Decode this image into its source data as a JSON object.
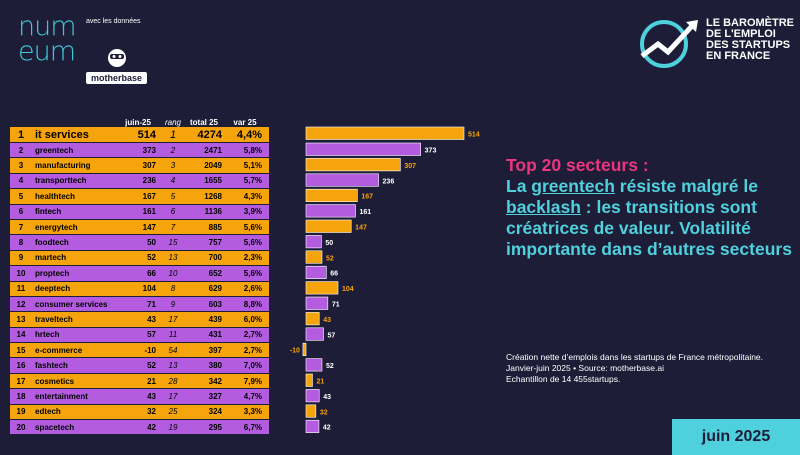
{
  "brand": {
    "logo_line1": "num",
    "logo_line2": "eum",
    "with_data": "avec les données",
    "motherbase": "motherbase"
  },
  "barometer": {
    "line1": "LE BAROMÈTRE",
    "line2": "DE L'EMPLOI",
    "line3": "DES STARTUPS",
    "line4": "EN FRANCE"
  },
  "headline": {
    "part1": "Top 20 secteurs :",
    "part2a": "La ",
    "part2_u1": "greentech",
    "part2b": " résiste malgré le ",
    "part2_u2": "backlash",
    "part2c": " : les transitions sont créatrices de valeur. Volatilité importante dans d’autres secteurs"
  },
  "note": {
    "line1": "Création nette d’emplois dans les startups de France métropolitaine.",
    "line2": "Janvier-juin 2025 • Source: motherbase.ai",
    "line3": "Echantillon de 14 455startups."
  },
  "badge": "juin 2025",
  "colors": {
    "orange": "#f6a40b",
    "purple": "#b35ce0",
    "bg": "#1e1d38",
    "cyan": "#4fd0dd",
    "pink": "#e8377f"
  },
  "table": {
    "headers": {
      "juin": "juin-25",
      "rang": "rang",
      "total": "total 25",
      "var": "var 25"
    },
    "rows": [
      {
        "rank": "1",
        "name": "it services",
        "juin": "514",
        "rang": "1",
        "total": "4274",
        "var": "4,4%"
      },
      {
        "rank": "2",
        "name": "greentech",
        "juin": "373",
        "rang": "2",
        "total": "2471",
        "var": "5,8%"
      },
      {
        "rank": "3",
        "name": "manufacturing",
        "juin": "307",
        "rang": "3",
        "total": "2049",
        "var": "5,1%"
      },
      {
        "rank": "4",
        "name": "transporttech",
        "juin": "236",
        "rang": "4",
        "total": "1655",
        "var": "5,7%"
      },
      {
        "rank": "5",
        "name": "healthtech",
        "juin": "167",
        "rang": "5",
        "total": "1268",
        "var": "4,3%"
      },
      {
        "rank": "6",
        "name": "fintech",
        "juin": "161",
        "rang": "6",
        "total": "1136",
        "var": "3,9%"
      },
      {
        "rank": "7",
        "name": "energytech",
        "juin": "147",
        "rang": "7",
        "total": "885",
        "var": "5,6%"
      },
      {
        "rank": "8",
        "name": "foodtech",
        "juin": "50",
        "rang": "15",
        "total": "757",
        "var": "5,6%"
      },
      {
        "rank": "9",
        "name": "martech",
        "juin": "52",
        "rang": "13",
        "total": "700",
        "var": "2,3%"
      },
      {
        "rank": "10",
        "name": "proptech",
        "juin": "66",
        "rang": "10",
        "total": "652",
        "var": "5,6%"
      },
      {
        "rank": "11",
        "name": "deeptech",
        "juin": "104",
        "rang": "8",
        "total": "629",
        "var": "2,6%"
      },
      {
        "rank": "12",
        "name": "consumer services",
        "juin": "71",
        "rang": "9",
        "total": "603",
        "var": "8,8%"
      },
      {
        "rank": "13",
        "name": "traveltech",
        "juin": "43",
        "rang": "17",
        "total": "439",
        "var": "6,0%"
      },
      {
        "rank": "14",
        "name": "hrtech",
        "juin": "57",
        "rang": "11",
        "total": "431",
        "var": "2,7%"
      },
      {
        "rank": "15",
        "name": "e-commerce",
        "juin": "-10",
        "rang": "54",
        "total": "397",
        "var": "2,7%"
      },
      {
        "rank": "16",
        "name": "fashtech",
        "juin": "52",
        "rang": "13",
        "total": "380",
        "var": "7,0%"
      },
      {
        "rank": "17",
        "name": "cosmetics",
        "juin": "21",
        "rang": "28",
        "total": "342",
        "var": "7,9%"
      },
      {
        "rank": "18",
        "name": "entertainment",
        "juin": "43",
        "rang": "17",
        "total": "327",
        "var": "4,7%"
      },
      {
        "rank": "19",
        "name": "edtech",
        "juin": "32",
        "rang": "25",
        "total": "324",
        "var": "3,3%"
      },
      {
        "rank": "20",
        "name": "spacetech",
        "juin": "42",
        "rang": "19",
        "total": "295",
        "var": "6,7%"
      }
    ]
  },
  "chart_data": {
    "type": "bar",
    "orientation": "horizontal",
    "title": "",
    "categories": [
      "it services",
      "greentech",
      "manufacturing",
      "transporttech",
      "healthtech",
      "fintech",
      "energytech",
      "foodtech",
      "martech",
      "proptech",
      "deeptech",
      "consumer services",
      "traveltech",
      "hrtech",
      "e-commerce",
      "fashtech",
      "cosmetics",
      "entertainment",
      "edtech",
      "spacetech"
    ],
    "values": [
      514,
      373,
      307,
      236,
      167,
      161,
      147,
      50,
      52,
      66,
      104,
      71,
      43,
      57,
      -10,
      52,
      21,
      43,
      32,
      42
    ],
    "xlim": [
      -10,
      514
    ],
    "grid": false
  }
}
